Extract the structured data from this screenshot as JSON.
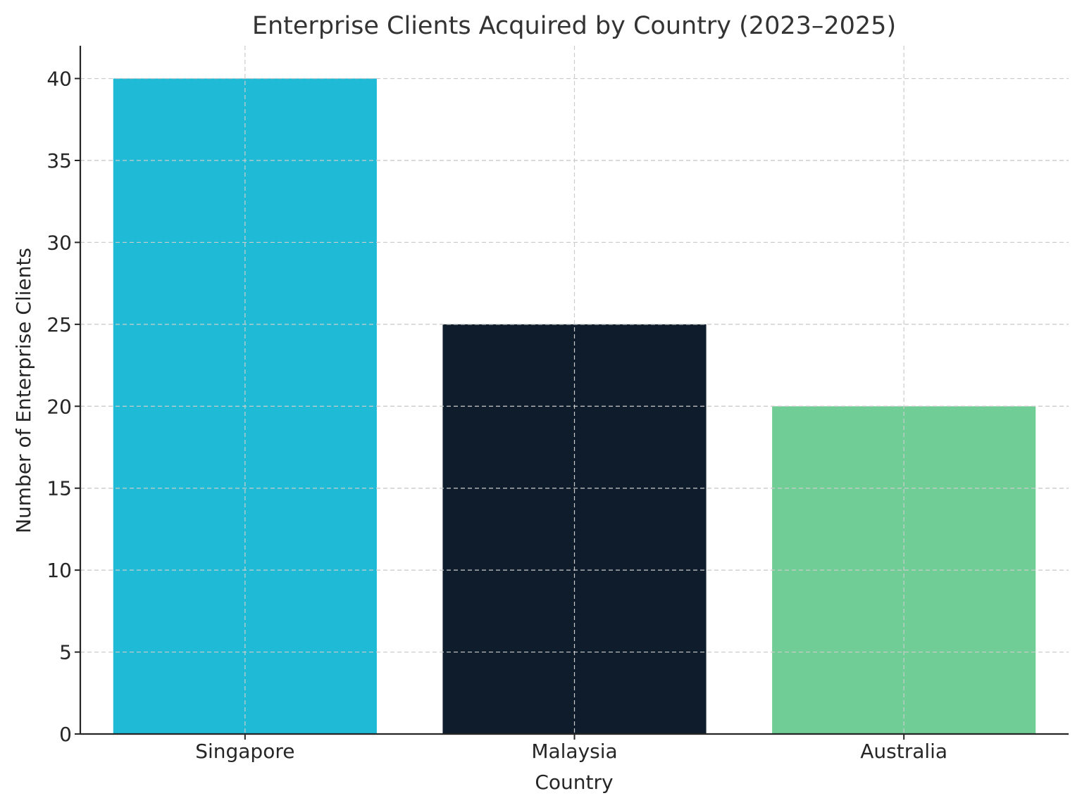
{
  "chart_data": {
    "type": "bar",
    "title": "Enterprise Clients Acquired by Country (2023–2025)",
    "xlabel": "Country",
    "ylabel": "Number of Enterprise Clients",
    "categories": [
      "Singapore",
      "Malaysia",
      "Australia"
    ],
    "values": [
      40,
      25,
      20
    ],
    "colors": [
      "#1fbad6",
      "#0e1c2b",
      "#70cd96"
    ],
    "ylim": [
      0,
      42
    ],
    "yticks": [
      0,
      5,
      10,
      15,
      20,
      25,
      30,
      35,
      40
    ],
    "grid": true,
    "legend": "none"
  }
}
